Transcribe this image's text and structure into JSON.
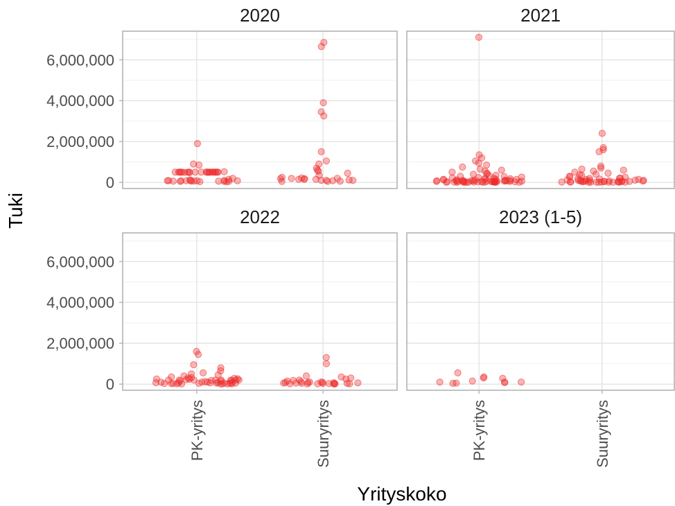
{
  "chart_data": {
    "type": "scatter",
    "facet_layout": "2x2",
    "xlabel": "Yrityskoko",
    "ylabel": "Tuki",
    "categories": [
      "PK-yritys",
      "Suuryritys"
    ],
    "yticks": [
      0,
      2000000,
      4000000,
      6000000
    ],
    "ytick_labels": [
      "0",
      "2,000,000",
      "4,000,000",
      "6,000,000"
    ],
    "ylim": [
      -300000,
      7400000
    ],
    "grid": true,
    "point_color": "#ee2c2c",
    "point_opacity": 0.35,
    "panels": [
      {
        "title": "2020",
        "points": [
          {
            "category": "PK-yritys",
            "values": [
              1900000,
              900000,
              850000,
              520000,
              510000,
              500000,
              500000,
              500000,
              490000,
              500000,
              500000,
              500000,
              500000,
              500000,
              500000,
              500000,
              500000,
              500000,
              500000,
              500000,
              500000,
              500000,
              500000,
              500000,
              490000,
              480000,
              200000,
              150000,
              120000,
              100000,
              100000,
              90000,
              80000,
              80000,
              80000,
              80000,
              80000,
              70000,
              60000,
              60000,
              60000,
              50000,
              50000,
              50000,
              40000,
              30000
            ]
          },
          {
            "category": "Suuryritys",
            "values": [
              6850000,
              6650000,
              3900000,
              3450000,
              3250000,
              1500000,
              1050000,
              900000,
              700000,
              600000,
              550000,
              450000,
              350000,
              250000,
              220000,
              200000,
              200000,
              180000,
              180000,
              150000,
              150000,
              150000,
              120000,
              100000,
              100000,
              100000,
              80000,
              60000,
              50000,
              50000
            ]
          }
        ]
      },
      {
        "title": "2021",
        "points": [
          {
            "category": "PK-yritys",
            "values": [
              7100000,
              1350000,
              1200000,
              1050000,
              950000,
              850000,
              750000,
              650000,
              600000,
              550000,
              500000,
              450000,
              420000,
              400000,
              350000,
              320000,
              300000,
              280000,
              260000,
              240000,
              220000,
              200000,
              200000,
              180000,
              160000,
              150000,
              150000,
              140000,
              130000,
              120000,
              110000,
              100000,
              100000,
              100000,
              90000,
              90000,
              80000,
              80000,
              80000,
              70000,
              70000,
              70000,
              60000,
              60000,
              60000,
              50000,
              50000,
              50000,
              50000,
              40000,
              40000,
              40000,
              40000,
              30000,
              30000,
              30000,
              30000,
              30000,
              20000,
              20000,
              20000,
              20000,
              20000,
              20000,
              10000,
              10000,
              10000,
              10000,
              10000,
              10000,
              10000,
              10000
            ]
          },
          {
            "category": "Suuryritys",
            "values": [
              2400000,
              1700000,
              1600000,
              1500000,
              800000,
              700000,
              650000,
              600000,
              550000,
              500000,
              450000,
              400000,
              380000,
              350000,
              300000,
              280000,
              250000,
              220000,
              200000,
              200000,
              180000,
              160000,
              150000,
              140000,
              120000,
              110000,
              100000,
              100000,
              90000,
              80000,
              80000,
              70000,
              70000,
              60000,
              60000,
              50000,
              50000,
              50000,
              40000,
              40000,
              40000,
              30000,
              30000,
              30000,
              20000,
              20000,
              20000,
              20000,
              10000,
              10000,
              10000,
              10000,
              10000,
              10000,
              10000
            ]
          }
        ]
      },
      {
        "title": "2022",
        "points": [
          {
            "category": "PK-yritys",
            "values": [
              1600000,
              1450000,
              950000,
              800000,
              650000,
              550000,
              500000,
              450000,
              400000,
              350000,
              320000,
              300000,
              280000,
              260000,
              250000,
              240000,
              220000,
              200000,
              200000,
              200000,
              200000,
              200000,
              200000,
              200000,
              200000,
              180000,
              160000,
              150000,
              140000,
              120000,
              100000,
              100000,
              90000,
              80000,
              80000,
              70000,
              60000,
              60000,
              50000,
              50000,
              50000,
              40000,
              40000,
              30000,
              30000,
              30000,
              20000,
              20000,
              20000,
              10000,
              10000,
              10000
            ]
          },
          {
            "category": "Suuryritys",
            "values": [
              1300000,
              1000000,
              400000,
              350000,
              300000,
              250000,
              200000,
              180000,
              150000,
              120000,
              100000,
              100000,
              90000,
              80000,
              80000,
              70000,
              60000,
              50000,
              50000,
              40000,
              40000,
              30000,
              30000,
              30000,
              20000,
              20000,
              20000,
              10000,
              10000,
              10000
            ]
          }
        ]
      },
      {
        "title": "2023 (1-5)",
        "points": [
          {
            "category": "PK-yritys",
            "values": [
              550000,
              350000,
              300000,
              280000,
              150000,
              100000,
              100000,
              90000,
              80000,
              50000,
              40000
            ]
          },
          {
            "category": "Suuryritys",
            "values": []
          }
        ]
      }
    ]
  }
}
